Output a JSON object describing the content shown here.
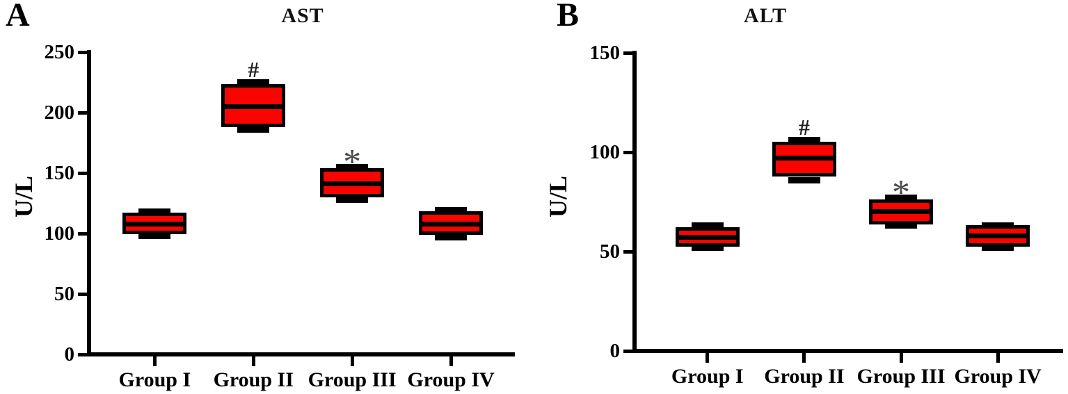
{
  "chart_data": [
    {
      "type": "box",
      "panel_label": "A",
      "title": "AST",
      "ylabel": "U/L",
      "xlabel": "",
      "ylim": [
        0,
        250
      ],
      "yticks": [
        250,
        200,
        150,
        100,
        50,
        0
      ],
      "grid": false,
      "legend": "none",
      "categories": [
        "Group I",
        "Group II",
        "Group III",
        "Group IV"
      ],
      "series": [
        {
          "name": "Group I",
          "min": 98,
          "q1": 102,
          "median": 108,
          "q3": 115,
          "max": 118,
          "annotation": ""
        },
        {
          "name": "Group II",
          "min": 186,
          "q1": 190,
          "median": 205,
          "q3": 221,
          "max": 225,
          "annotation": "#"
        },
        {
          "name": "Group III",
          "min": 128,
          "q1": 132,
          "median": 141,
          "q3": 152,
          "max": 155,
          "annotation": "*"
        },
        {
          "name": "Group IV",
          "min": 97,
          "q1": 101,
          "median": 108,
          "q3": 116,
          "max": 119,
          "annotation": ""
        }
      ],
      "colors": {
        "box_fill": "#fa0400",
        "box_border": "#000000",
        "axis": "#000000",
        "annotation_hash": "#1f1f1f",
        "annotation_star": "#4a4a4a"
      }
    },
    {
      "type": "box",
      "panel_label": "B",
      "title": "ALT",
      "ylabel": "U/L",
      "xlabel": "",
      "ylim": [
        0,
        150
      ],
      "yticks": [
        150,
        100,
        50,
        0
      ],
      "grid": false,
      "legend": "none",
      "categories": [
        "Group I",
        "Group II",
        "Group III",
        "Group IV"
      ],
      "series": [
        {
          "name": "Group I",
          "min": 52,
          "q1": 54,
          "median": 57,
          "q3": 61,
          "max": 63,
          "annotation": ""
        },
        {
          "name": "Group II",
          "min": 86,
          "q1": 89,
          "median": 97,
          "q3": 104,
          "max": 106,
          "annotation": "#"
        },
        {
          "name": "Group III",
          "min": 63,
          "q1": 65,
          "median": 70,
          "q3": 75,
          "max": 77,
          "annotation": "*"
        },
        {
          "name": "Group IV",
          "min": 52,
          "q1": 54,
          "median": 58,
          "q3": 62,
          "max": 63,
          "annotation": ""
        }
      ],
      "colors": {
        "box_fill": "#fa0400",
        "box_border": "#000000",
        "axis": "#000000",
        "annotation_hash": "#1f1f1f",
        "annotation_star": "#4a4a4a"
      }
    }
  ]
}
